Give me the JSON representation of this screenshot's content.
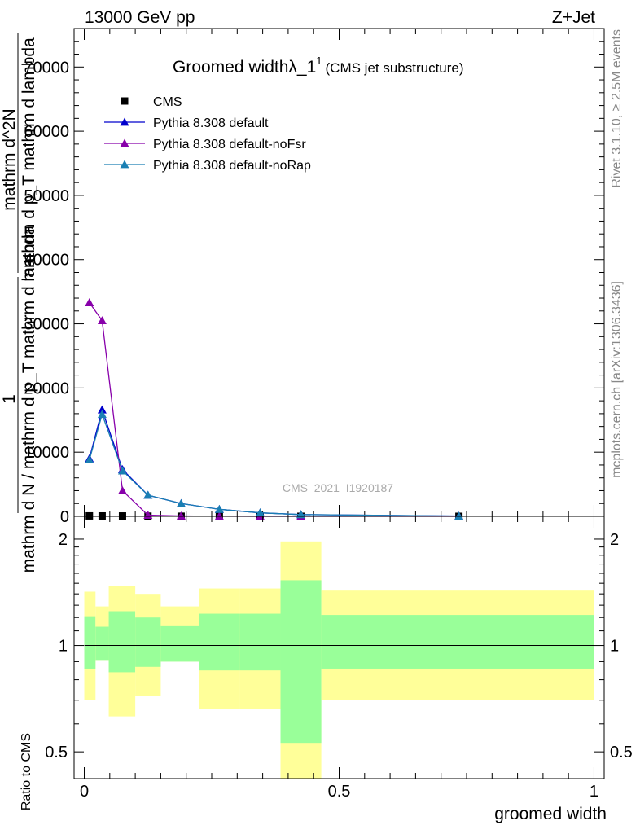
{
  "header": {
    "left": "13000 GeV pp",
    "right": "Z+Jet"
  },
  "side_labels": {
    "rivet": "Rivet 3.1.10, ≥ 2.5M events",
    "mcplots": "mcplots.cern.ch [arXiv:1306.3436]"
  },
  "watermark": "CMS_2021_I1920187",
  "chart_data": [
    {
      "type": "line",
      "title": "Groomed width",
      "title_symbol": "λ_1",
      "title_sup": "1",
      "title_suffix": "(CMS jet substructure)",
      "ylabel_num": "1",
      "ylabel_den": "mathrm d N / mathrm d p_T mathrm d lambda",
      "ylabel_expr": "mathrm d^2N",
      "ylabel_expr_sub": "mathrm d p_T mathrm d lambda",
      "ylim": [
        0,
        76000
      ],
      "xlim": [
        -0.02,
        1.02
      ],
      "y_ticks": [
        0,
        10000,
        20000,
        30000,
        40000,
        50000,
        60000,
        70000
      ],
      "y_tick_labels": [
        "0",
        "10000",
        "20000",
        "30000",
        "40000",
        "50000",
        "60000",
        "70000"
      ],
      "legend_position": "top-left",
      "series": [
        {
          "name": "CMS",
          "color": "#000000",
          "marker": "square",
          "x": [
            0.01,
            0.035,
            0.075,
            0.125,
            0.19,
            0.265,
            0.345,
            0.425,
            0.735
          ],
          "y": [
            70,
            65,
            60,
            30,
            15,
            10,
            6,
            5,
            2
          ]
        },
        {
          "name": "Pythia 8.308 default",
          "color": "#0000cc",
          "marker": "triangle",
          "x": [
            0.01,
            0.035,
            0.075,
            0.125,
            0.19,
            0.265,
            0.345,
            0.425,
            0.735
          ],
          "y": [
            9000,
            16600,
            7300,
            3300,
            2000,
            1100,
            550,
            280,
            40
          ]
        },
        {
          "name": "Pythia 8.308 default-noFsr",
          "color": "#8800aa",
          "marker": "triangle",
          "x": [
            0.01,
            0.035,
            0.075,
            0.125,
            0.19,
            0.265,
            0.345,
            0.425,
            0.735
          ],
          "y": [
            33300,
            30500,
            4000,
            180,
            60,
            20,
            8,
            4,
            1
          ]
        },
        {
          "name": "Pythia 8.308 default-noRap",
          "color": "#1a7fb3",
          "marker": "triangle",
          "x": [
            0.01,
            0.035,
            0.075,
            0.125,
            0.19,
            0.265,
            0.345,
            0.425,
            0.735
          ],
          "y": [
            8800,
            15900,
            7100,
            3300,
            2000,
            1100,
            550,
            280,
            40
          ]
        }
      ]
    },
    {
      "type": "area",
      "ylabel": "Ratio to CMS",
      "xlabel": "groomed width",
      "ylim": [
        0.42,
        2.32
      ],
      "xlim": [
        -0.02,
        1.02
      ],
      "log_y": true,
      "y_ticks": [
        0.5,
        1,
        2
      ],
      "y_tick_labels": [
        "0.5",
        "1",
        "2"
      ],
      "x_ticks": [
        0,
        0.5,
        1
      ],
      "x_tick_labels": [
        "0",
        "0.5",
        "1"
      ],
      "reference_line": 1,
      "bands": [
        {
          "x0": 0.0,
          "x1": 0.022,
          "inner": [
            0.86,
            1.21
          ],
          "outer": [
            0.7,
            1.42
          ]
        },
        {
          "x0": 0.022,
          "x1": 0.048,
          "inner": [
            0.91,
            1.13
          ],
          "outer": [
            0.91,
            1.29
          ]
        },
        {
          "x0": 0.048,
          "x1": 0.1,
          "inner": [
            0.84,
            1.25
          ],
          "outer": [
            0.63,
            1.47
          ]
        },
        {
          "x0": 0.1,
          "x1": 0.15,
          "inner": [
            0.87,
            1.2
          ],
          "outer": [
            0.72,
            1.4
          ]
        },
        {
          "x0": 0.15,
          "x1": 0.225,
          "inner": [
            0.9,
            1.14
          ],
          "outer": [
            0.9,
            1.29
          ]
        },
        {
          "x0": 0.225,
          "x1": 0.305,
          "inner": [
            0.85,
            1.23
          ],
          "outer": [
            0.66,
            1.45
          ]
        },
        {
          "x0": 0.305,
          "x1": 0.385,
          "inner": [
            0.85,
            1.23
          ],
          "outer": [
            0.66,
            1.45
          ]
        },
        {
          "x0": 0.385,
          "x1": 0.465,
          "inner": [
            0.53,
            1.53
          ],
          "outer": [
            0.4,
            1.97
          ]
        },
        {
          "x0": 0.465,
          "x1": 1.0,
          "inner": [
            0.86,
            1.22
          ],
          "outer": [
            0.7,
            1.43
          ]
        }
      ],
      "band_colors": {
        "inner": "#99ff99",
        "outer": "#ffff99"
      }
    }
  ]
}
